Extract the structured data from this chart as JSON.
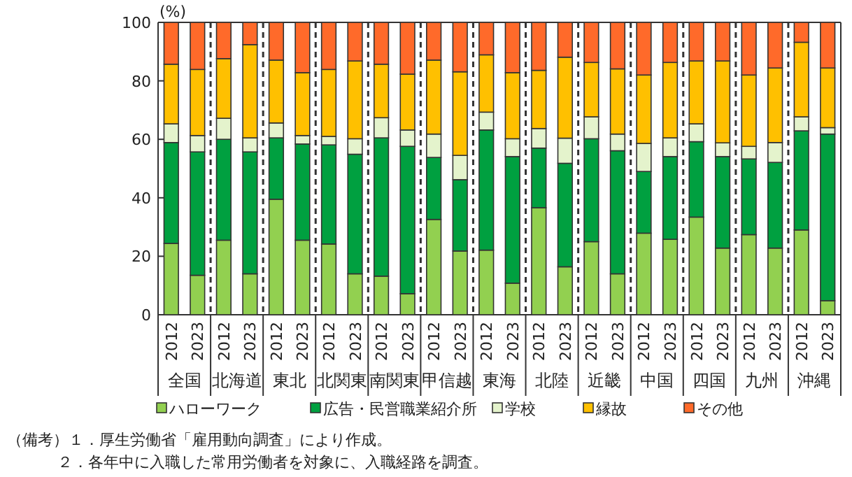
{
  "chart_data": {
    "type": "bar",
    "stacked": true,
    "ylabel": "(%)",
    "ylim": [
      0,
      100
    ],
    "yticks": [
      0,
      20,
      40,
      60,
      80,
      100
    ],
    "legend": "bottom",
    "grid": false,
    "categories": [
      "2012",
      "2023",
      "2012",
      "2023",
      "2012",
      "2023",
      "2012",
      "2023",
      "2012",
      "2023",
      "2012",
      "2023",
      "2012",
      "2023",
      "2012",
      "2023",
      "2012",
      "2023",
      "2012",
      "2023",
      "2012",
      "2023",
      "2012",
      "2023",
      "2012",
      "2023"
    ],
    "series": [
      {
        "name": "ハローワーク",
        "color": "#92d050",
        "values": [
          24.4,
          13.5,
          25.5,
          14.0,
          39.5,
          25.5,
          24.2,
          14.0,
          13.2,
          7.2,
          32.6,
          21.8,
          22.1,
          10.8,
          36.6,
          16.4,
          25.0,
          14.0,
          27.9,
          25.8,
          33.4,
          22.8,
          27.4,
          22.8,
          29.0,
          4.8
        ]
      },
      {
        "name": "広告・民営職業紹介所",
        "color": "#00a040",
        "values": [
          34.5,
          42.2,
          34.5,
          41.7,
          21.0,
          32.9,
          33.9,
          40.9,
          47.3,
          50.4,
          21.2,
          24.4,
          41.1,
          43.3,
          20.4,
          35.4,
          35.2,
          42.1,
          21.1,
          28.3,
          25.8,
          31.3,
          25.9,
          29.3,
          33.9,
          57.0
        ]
      },
      {
        "name": "学校",
        "color": "#e4f3cc",
        "values": [
          6.4,
          5.6,
          7.2,
          4.8,
          5.1,
          2.9,
          2.9,
          5.3,
          6.9,
          5.6,
          8.0,
          8.3,
          6.1,
          6.1,
          6.7,
          8.6,
          7.5,
          5.7,
          9.6,
          6.4,
          6.1,
          4.7,
          4.3,
          6.8,
          4.8,
          2.2
        ]
      },
      {
        "name": "縁故",
        "color": "#ffc000",
        "values": [
          20.4,
          22.6,
          20.4,
          31.9,
          21.5,
          21.5,
          22.9,
          26.6,
          18.3,
          19.1,
          25.3,
          28.6,
          19.6,
          22.6,
          19.9,
          27.7,
          18.6,
          22.3,
          23.4,
          25.8,
          21.5,
          28.0,
          24.4,
          25.5,
          25.5,
          20.4
        ]
      },
      {
        "name": "その他",
        "color": "#ff6a2a",
        "values": [
          14.3,
          16.1,
          12.4,
          7.6,
          12.9,
          17.2,
          16.1,
          13.2,
          14.3,
          17.7,
          12.9,
          16.9,
          11.1,
          17.2,
          16.4,
          11.9,
          13.7,
          15.9,
          18.0,
          13.7,
          13.2,
          13.2,
          18.0,
          15.6,
          6.8,
          15.6
        ]
      }
    ],
    "annotations": [
      "全国",
      "北海道",
      "東北",
      "北関東",
      "南関東",
      "甲信越",
      "東海",
      "北陸",
      "近畿",
      "中国",
      "四国",
      "九州",
      "沖縄",
      "（備考）１．厚生労働省「雇用動向調査」により作成。",
      "２．各年中に入職した常用労働者を対象に、入職経路を調査。"
    ]
  }
}
